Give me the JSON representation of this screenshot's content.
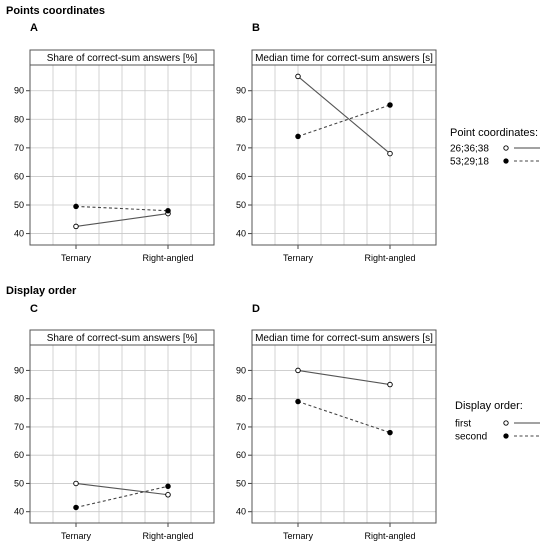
{
  "sections": [
    {
      "title": "Points coordinates"
    },
    {
      "title": "Display order"
    }
  ],
  "legends": [
    {
      "title": "Point coordinates:",
      "entries": [
        {
          "label": "26;36;38",
          "marker": "open",
          "line": "solid"
        },
        {
          "label": "53;29;18",
          "marker": "filled",
          "line": "dashed"
        }
      ]
    },
    {
      "title": "Display order:",
      "entries": [
        {
          "label": "first",
          "marker": "open",
          "line": "solid"
        },
        {
          "label": "second",
          "marker": "filled",
          "line": "dashed"
        }
      ]
    }
  ],
  "chart_data": [
    {
      "panel": "A",
      "type": "line",
      "title": "Share of correct-sum answers [%]",
      "categories": [
        "Ternary",
        "Right-angled"
      ],
      "yticks": [
        40,
        50,
        60,
        70,
        80,
        90
      ],
      "ylim": [
        36,
        99
      ],
      "series": [
        {
          "name": "26;36;38",
          "values": [
            42.5,
            47
          ],
          "marker": "open",
          "line": "solid"
        },
        {
          "name": "53;29;18",
          "values": [
            49.5,
            48
          ],
          "marker": "filled",
          "line": "dashed"
        }
      ]
    },
    {
      "panel": "B",
      "type": "line",
      "title": "Median time for correct-sum answers [s]",
      "categories": [
        "Ternary",
        "Right-angled"
      ],
      "yticks": [
        40,
        50,
        60,
        70,
        80,
        90
      ],
      "ylim": [
        36,
        99
      ],
      "series": [
        {
          "name": "26;36;38",
          "values": [
            95,
            68
          ],
          "marker": "open",
          "line": "solid"
        },
        {
          "name": "53;29;18",
          "values": [
            74,
            85
          ],
          "marker": "filled",
          "line": "dashed"
        }
      ]
    },
    {
      "panel": "C",
      "type": "line",
      "title": "Share of correct-sum answers [%]",
      "categories": [
        "Ternary",
        "Right-angled"
      ],
      "yticks": [
        40,
        50,
        60,
        70,
        80,
        90
      ],
      "ylim": [
        36,
        99
      ],
      "series": [
        {
          "name": "first",
          "values": [
            50,
            46
          ],
          "marker": "open",
          "line": "solid"
        },
        {
          "name": "second",
          "values": [
            41.5,
            49
          ],
          "marker": "filled",
          "line": "dashed"
        }
      ]
    },
    {
      "panel": "D",
      "type": "line",
      "title": "Median time for correct-sum answers [s]",
      "categories": [
        "Ternary",
        "Right-angled"
      ],
      "yticks": [
        40,
        50,
        60,
        70,
        80,
        90
      ],
      "ylim": [
        36,
        99
      ],
      "series": [
        {
          "name": "first",
          "values": [
            90,
            85
          ],
          "marker": "open",
          "line": "solid"
        },
        {
          "name": "second",
          "values": [
            79,
            68
          ],
          "marker": "filled",
          "line": "dashed"
        }
      ]
    }
  ]
}
